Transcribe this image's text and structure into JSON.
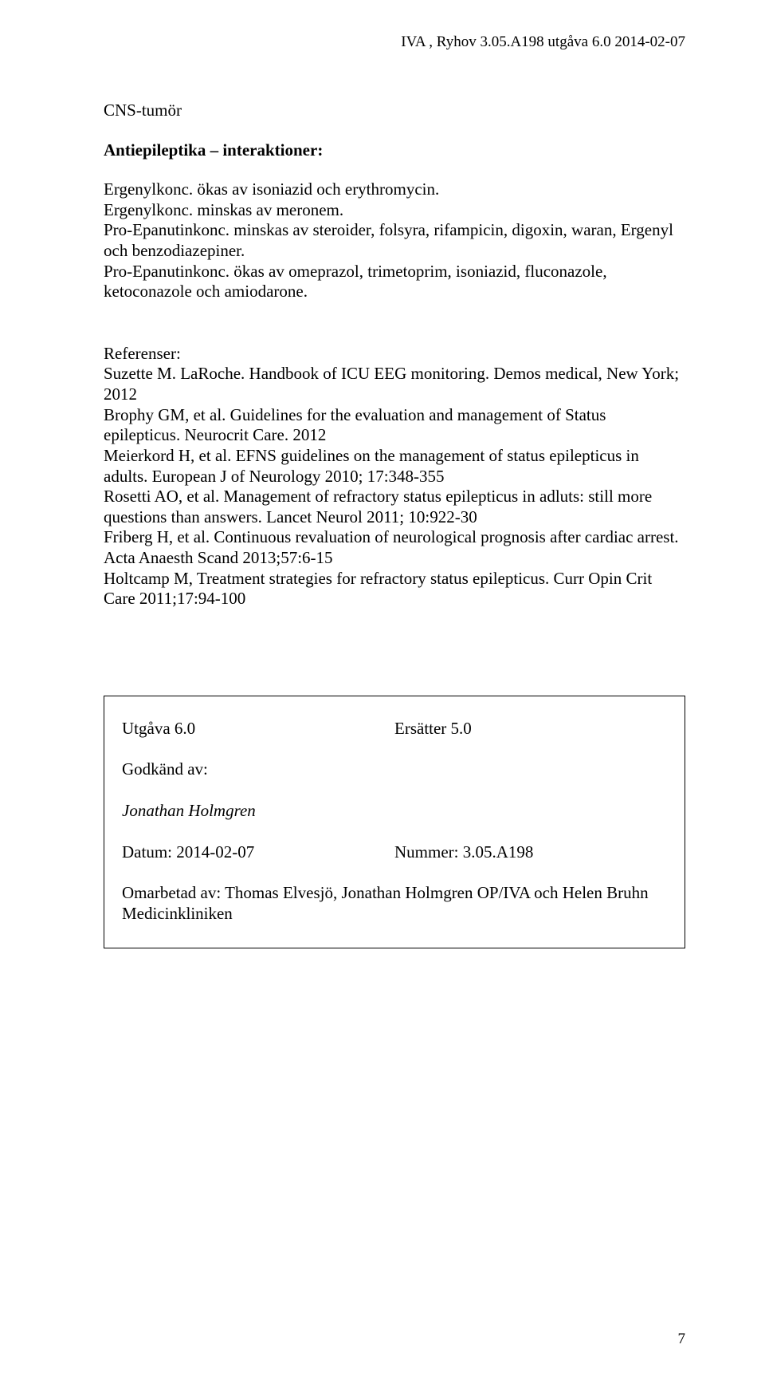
{
  "header": {
    "text": "IVA , Ryhov   3.05.A198  utgåva 6.0  2014-02-07"
  },
  "section_title": "CNS-tumör",
  "subsection_title": "Antiepileptika – interaktioner:",
  "interactions": {
    "p1": "Ergenylkonc. ökas av isoniazid och erythromycin.",
    "p2": "Ergenylkonc. minskas av meronem.",
    "p3": "Pro-Epanutinkonc. minskas av steroider, folsyra, rifampicin, digoxin, waran, Ergenyl och benzodiazepiner.",
    "p4": "Pro-Epanutinkonc. ökas av omeprazol, trimetoprim, isoniazid, fluconazole, ketoconazole och amiodarone."
  },
  "references": {
    "heading": "Referenser:",
    "r1": "Suzette M. LaRoche. Handbook of ICU EEG monitoring. Demos medical, New York; 2012",
    "r2": "Brophy GM, et al. Guidelines for the evaluation and management of Status epilepticus. Neurocrit Care. 2012",
    "r3": "Meierkord H, et al. EFNS guidelines on the management of status epilepticus in adults. European J of Neurology 2010; 17:348-355",
    "r4": "Rosetti AO, et al. Management of refractory status epilepticus in adluts: still more questions than answers. Lancet Neurol 2011; 10:922-30",
    "r5": "Friberg H, et al. Continuous revaluation of neurological prognosis after cardiac arrest. Acta Anaesth Scand 2013;57:6-15",
    "r6": "Holtcamp M, Treatment strategies for refractory status epilepticus. Curr Opin Crit Care 2011;17:94-100"
  },
  "footer": {
    "edition_label": "Utgåva 6.0",
    "replaces_label": "Ersätter 5.0",
    "approved_label": "Godkänd av:",
    "approved_by": "Jonathan Holmgren",
    "date_label": "Datum: 2014-02-07",
    "number_label": "Nummer: 3.05.A198",
    "revised_label": "Omarbetad av: Thomas Elvesjö, Jonathan Holmgren OP/IVA och Helen Bruhn Medicinkliniken"
  },
  "page_number": "7"
}
